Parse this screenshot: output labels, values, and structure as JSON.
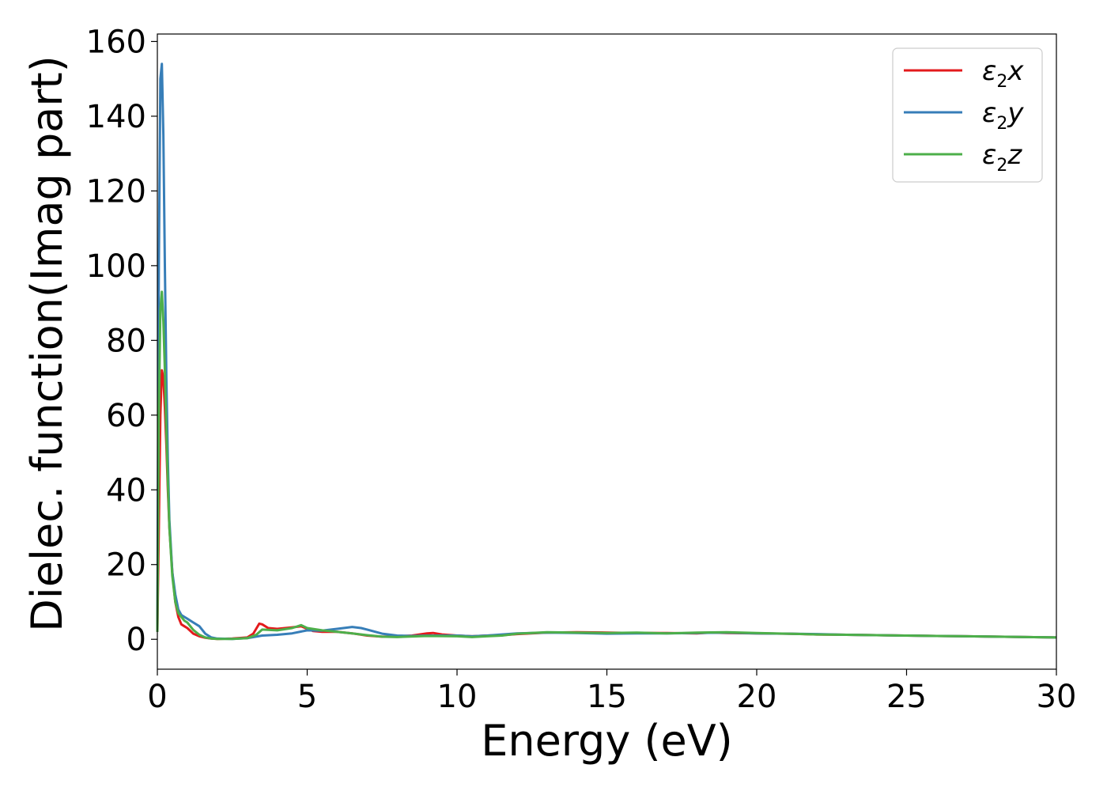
{
  "chart_data": {
    "type": "line",
    "title": "",
    "xlabel": "Energy (eV)",
    "ylabel": "Dielec. function(Imag part)",
    "xlim": [
      0,
      30
    ],
    "ylim": [
      -8,
      162
    ],
    "xticks": [
      0,
      5,
      10,
      15,
      20,
      25,
      30
    ],
    "yticks": [
      0,
      20,
      40,
      60,
      80,
      100,
      120,
      140,
      160
    ],
    "grid": false,
    "legend_position": "top-right",
    "series": [
      {
        "name": "ε2x",
        "legend_base": "ε",
        "legend_sub": "2",
        "legend_var": "x",
        "color": "#e31a1c",
        "x": [
          0,
          0.05,
          0.1,
          0.15,
          0.2,
          0.25,
          0.3,
          0.35,
          0.4,
          0.5,
          0.6,
          0.7,
          0.8,
          0.9,
          1.0,
          1.2,
          1.4,
          1.6,
          1.8,
          2.0,
          2.5,
          3.0,
          3.2,
          3.4,
          3.5,
          3.7,
          4.0,
          4.5,
          4.8,
          5.0,
          5.2,
          5.5,
          6.0,
          6.5,
          7.0,
          7.5,
          8.0,
          8.5,
          9.0,
          9.2,
          9.5,
          10.0,
          10.5,
          11.0,
          11.5,
          12.0,
          13.0,
          14.0,
          15.0,
          16.0,
          17.0,
          18.0,
          18.5,
          19.0,
          20.0,
          21.0,
          22.0,
          23.0,
          24.0,
          25.0,
          26.0,
          27.0,
          28.0,
          29.0,
          30.0
        ],
        "y": [
          2,
          30,
          60,
          72,
          70,
          62,
          52,
          40,
          30,
          18,
          10,
          6,
          4,
          3.5,
          3,
          1.5,
          0.8,
          0.4,
          0.2,
          0.1,
          0.2,
          0.5,
          1.5,
          4.2,
          4.0,
          3.0,
          2.8,
          3.2,
          3.5,
          2.8,
          2.2,
          2.0,
          2.0,
          1.6,
          1.0,
          0.7,
          0.8,
          1.0,
          1.6,
          1.7,
          1.3,
          1.0,
          0.8,
          1.0,
          1.1,
          1.4,
          1.8,
          1.9,
          1.8,
          1.7,
          1.7,
          1.6,
          1.8,
          1.7,
          1.6,
          1.5,
          1.3,
          1.2,
          1.1,
          1.0,
          0.9,
          0.8,
          0.7,
          0.6,
          0.5
        ]
      },
      {
        "name": "ε2y",
        "legend_base": "ε",
        "legend_sub": "2",
        "legend_var": "y",
        "color": "#377eb8",
        "x": [
          0,
          0.05,
          0.1,
          0.15,
          0.2,
          0.25,
          0.3,
          0.35,
          0.4,
          0.5,
          0.6,
          0.7,
          0.8,
          0.9,
          1.0,
          1.2,
          1.4,
          1.6,
          1.8,
          2.0,
          2.5,
          3.0,
          3.5,
          4.0,
          4.5,
          5.0,
          5.5,
          6.0,
          6.5,
          6.8,
          7.0,
          7.5,
          8.0,
          8.5,
          9.0,
          10.0,
          10.5,
          11.0,
          11.5,
          12.0,
          13.0,
          14.0,
          15.0,
          16.0,
          17.0,
          18.0,
          19.0,
          20.0,
          21.0,
          22.0,
          23.0,
          24.0,
          25.0,
          26.0,
          27.0,
          28.0,
          29.0,
          30.0
        ],
        "y": [
          2,
          100,
          150,
          154,
          135,
          100,
          70,
          48,
          32,
          18,
          12,
          8,
          6.5,
          6,
          5.5,
          4.5,
          3.5,
          1.5,
          0.5,
          0.2,
          0.1,
          0.3,
          1.0,
          1.2,
          1.6,
          2.4,
          2.3,
          2.8,
          3.3,
          3.0,
          2.6,
          1.5,
          1.0,
          0.9,
          1.0,
          1.0,
          0.8,
          1.0,
          1.3,
          1.6,
          1.8,
          1.7,
          1.5,
          1.6,
          1.6,
          1.7,
          1.8,
          1.6,
          1.5,
          1.4,
          1.2,
          1.1,
          1.0,
          0.9,
          0.8,
          0.7,
          0.6,
          0.5
        ]
      },
      {
        "name": "ε2z",
        "legend_base": "ε",
        "legend_sub": "2",
        "legend_var": "z",
        "color": "#4daf4a",
        "x": [
          0,
          0.05,
          0.1,
          0.15,
          0.2,
          0.25,
          0.3,
          0.35,
          0.4,
          0.5,
          0.6,
          0.7,
          0.8,
          0.9,
          1.0,
          1.2,
          1.4,
          1.6,
          1.8,
          2.0,
          2.5,
          3.0,
          3.3,
          3.5,
          4.0,
          4.5,
          4.8,
          5.0,
          5.5,
          6.0,
          6.5,
          7.0,
          7.5,
          8.0,
          9.0,
          10.0,
          10.5,
          11.0,
          11.5,
          12.0,
          13.0,
          14.0,
          15.0,
          16.0,
          17.0,
          18.0,
          19.0,
          20.0,
          21.0,
          22.0,
          23.0,
          24.0,
          25.0,
          26.0,
          27.0,
          28.0,
          29.0,
          30.0
        ],
        "y": [
          2,
          60,
          88,
          93,
          85,
          72,
          56,
          42,
          30,
          17,
          10,
          7,
          6,
          5,
          4.5,
          2.5,
          1.2,
          0.5,
          0.2,
          0.1,
          0.1,
          0.3,
          1.2,
          2.6,
          2.4,
          3.0,
          3.8,
          3.0,
          2.4,
          2.0,
          1.6,
          1.1,
          0.7,
          0.6,
          0.9,
          0.8,
          0.6,
          0.8,
          1.0,
          1.5,
          1.9,
          1.8,
          1.7,
          1.8,
          1.6,
          1.8,
          1.9,
          1.7,
          1.5,
          1.3,
          1.2,
          1.1,
          1.0,
          0.9,
          0.8,
          0.7,
          0.6,
          0.5
        ]
      }
    ]
  }
}
